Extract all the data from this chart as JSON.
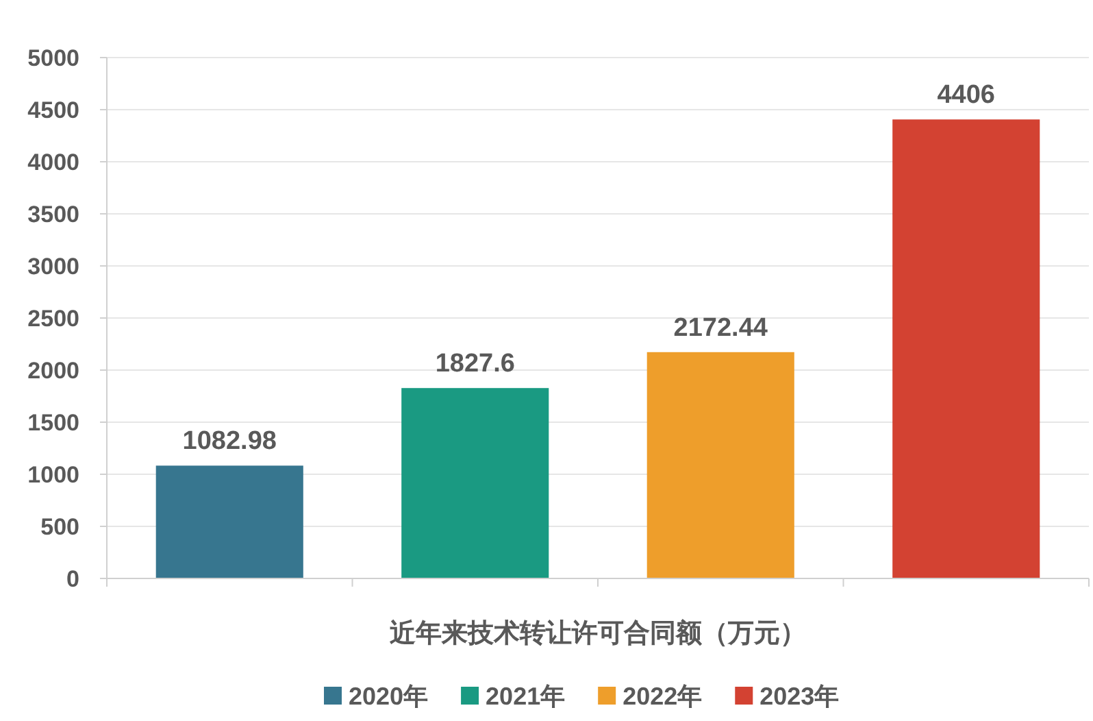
{
  "chart_data": {
    "type": "bar",
    "stacked": true,
    "xlabel": "近年来技术转让许可合同额（万元）",
    "categories": [
      null,
      null,
      null,
      null
    ],
    "series": [
      {
        "name": "2020年",
        "color": "#37768f",
        "values": [
          1082.98,
          null,
          null,
          null
        ]
      },
      {
        "name": "2021年",
        "color": "#1a9a82",
        "values": [
          null,
          1827.6,
          null,
          null
        ]
      },
      {
        "name": "2022年",
        "color": "#ee9e2b",
        "values": [
          null,
          null,
          2172.44,
          null
        ]
      },
      {
        "name": "2023年",
        "color": "#d34232",
        "values": [
          null,
          null,
          null,
          4406
        ]
      }
    ],
    "ylim": [
      0,
      5000
    ],
    "yticks": [
      0,
      500,
      1000,
      1500,
      2000,
      2500,
      3000,
      3500,
      4000,
      4500,
      5000
    ],
    "grid": "y",
    "legend": "bottom",
    "data_labels": true
  }
}
